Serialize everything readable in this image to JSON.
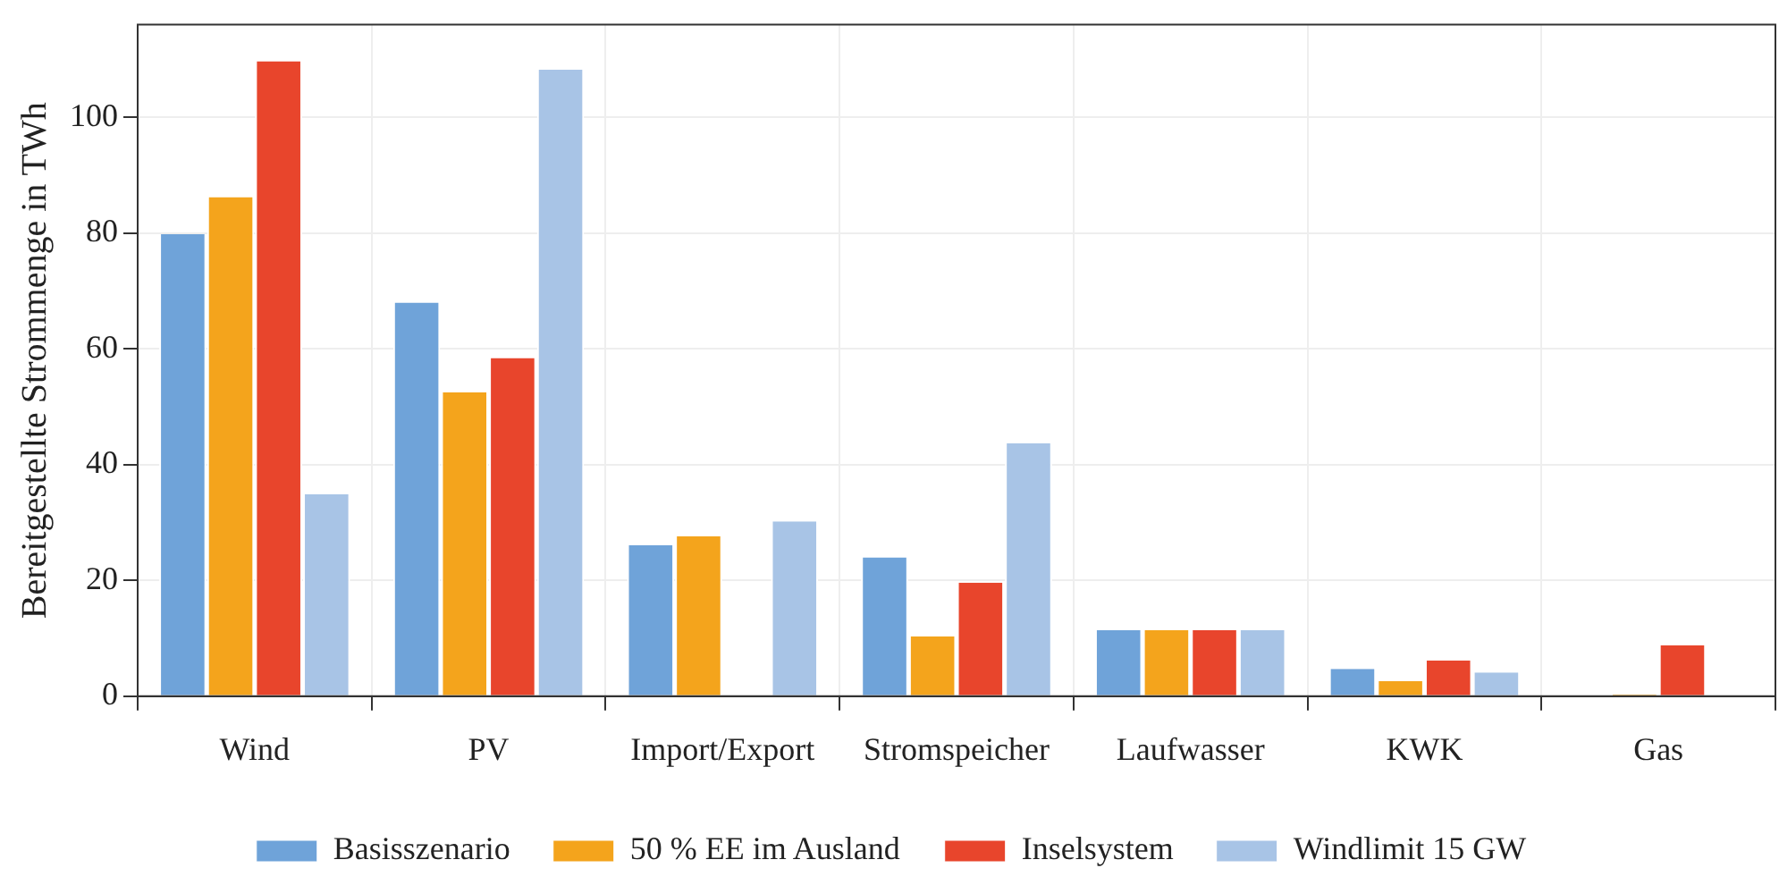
{
  "chart_data": {
    "type": "bar",
    "ylabel": "Bereitgestellte Strommenge in TWh",
    "categories": [
      "Wind",
      "PV",
      "Import/Export",
      "Stromspeicher",
      "Laufwasser",
      "KWK",
      "Gas"
    ],
    "series": [
      {
        "name": "Basisszenario",
        "color": "#6fa3d9",
        "values": [
          79.8,
          68,
          26.1,
          24,
          11.4,
          4.7,
          0
        ]
      },
      {
        "name": "50 % EE im Ausland",
        "color": "#f4a41c",
        "values": [
          86.2,
          52.5,
          27.6,
          10.3,
          11.4,
          2.6,
          0.3
        ]
      },
      {
        "name": "Inselsystem",
        "color": "#e8452c",
        "values": [
          109.7,
          58.4,
          0,
          19.6,
          11.4,
          6.2,
          8.8
        ]
      },
      {
        "name": "Windlimit 15 GW",
        "color": "#a8c4e6",
        "values": [
          34.9,
          108.2,
          30.2,
          43.7,
          11.4,
          4.1,
          0
        ]
      }
    ],
    "ylim": [
      0,
      116
    ],
    "yticks": [
      0,
      20,
      40,
      60,
      80,
      100
    ],
    "grid": true,
    "legend": "bottom"
  }
}
